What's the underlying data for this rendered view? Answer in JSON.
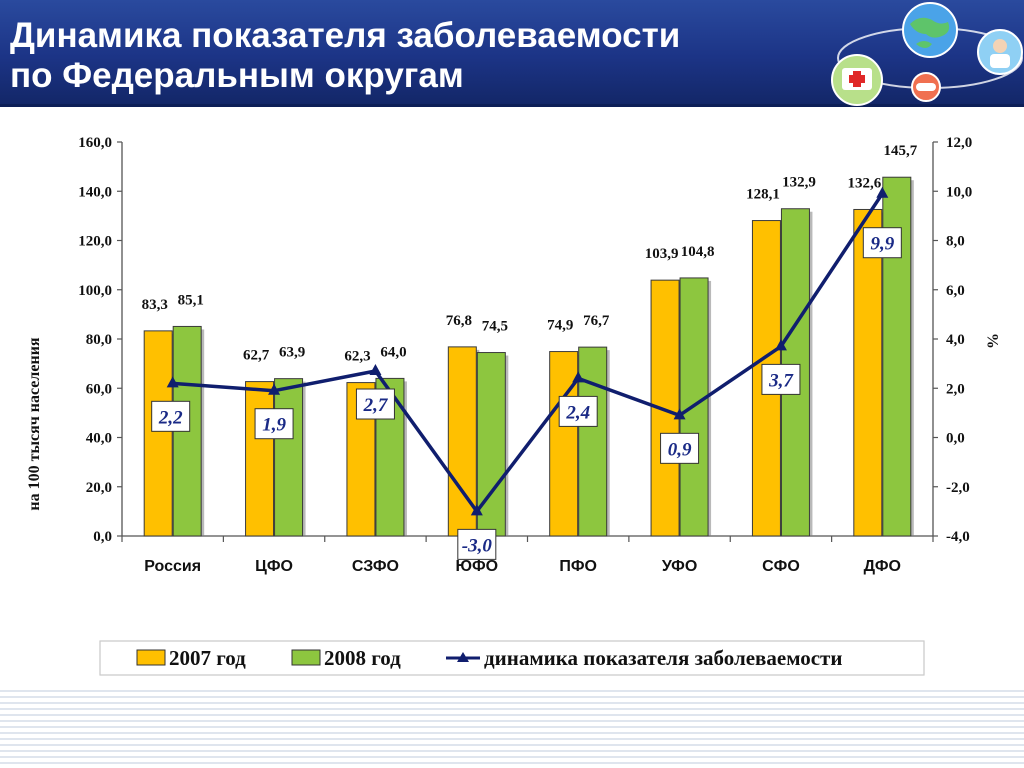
{
  "header": {
    "title": "Динамика показателя заболеваемости\nпо Федеральным округам"
  },
  "chart_data": {
    "type": "bar",
    "categories": [
      "Россия",
      "ЦФО",
      "СЗФО",
      "ЮФО",
      "ПФО",
      "УФО",
      "СФО",
      "ДФО"
    ],
    "series": [
      {
        "name": "2007 год",
        "type": "bar",
        "axis": "left",
        "color": "#ffc000",
        "values": [
          83.3,
          62.7,
          62.3,
          76.8,
          74.9,
          103.9,
          128.1,
          132.6
        ],
        "labels": [
          "83,3",
          "62,7",
          "62,3",
          "76,8",
          "74,9",
          "103,9",
          "128,1",
          "132,6"
        ]
      },
      {
        "name": "2008 год",
        "type": "bar",
        "axis": "left",
        "color": "#8dc63f",
        "values": [
          85.1,
          63.9,
          64.0,
          74.5,
          76.7,
          104.8,
          132.9,
          145.7
        ],
        "labels": [
          "85,1",
          "63,9",
          "64,0",
          "74,5",
          "76,7",
          "104,8",
          "132,9",
          "145,7"
        ]
      },
      {
        "name": "динамика показателя заболеваемости",
        "type": "line",
        "axis": "right",
        "color": "#101e6e",
        "values": [
          2.2,
          1.9,
          2.7,
          -3.0,
          2.4,
          0.9,
          3.7,
          9.9
        ],
        "labels": [
          "2,2",
          "1,9",
          "2,7",
          "-3,0",
          "2,4",
          "0,9",
          "3,7",
          "9,9"
        ]
      }
    ],
    "ylabel": "на 100 тысяч населения",
    "y2label": "%",
    "ylim": [
      0,
      160
    ],
    "y2lim": [
      -4,
      12
    ],
    "yticks": [
      "0,0",
      "20,0",
      "40,0",
      "60,0",
      "80,0",
      "100,0",
      "120,0",
      "140,0",
      "160,0"
    ],
    "y2ticks": [
      "-4,0",
      "-2,0",
      "0,0",
      "2,0",
      "4,0",
      "6,0",
      "8,0",
      "10,0",
      "12,0"
    ],
    "grid": false,
    "legend_position": "bottom"
  }
}
